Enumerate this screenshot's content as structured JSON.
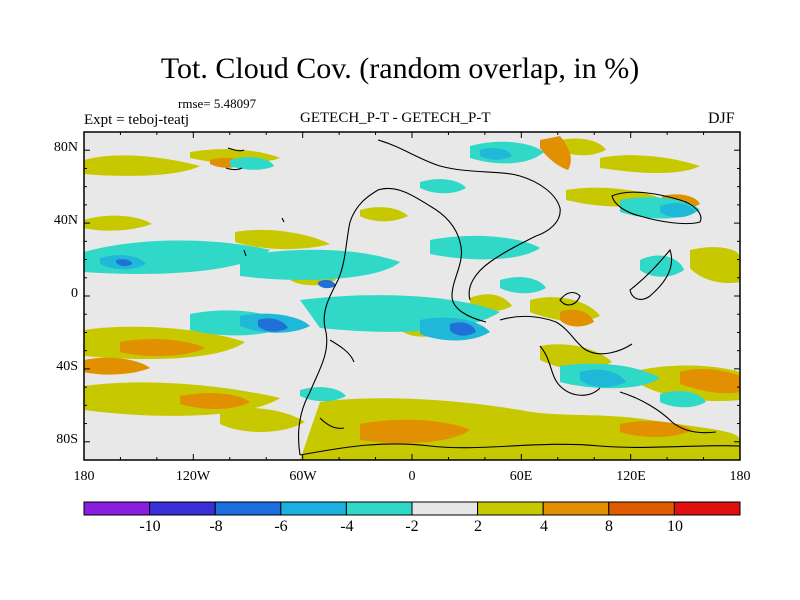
{
  "title": "Tot. Cloud Cov. (random overlap, in %)",
  "rmse_label": "rmse= 5.48097",
  "expt_label": "Expt = teboj-teatj",
  "subtitle": "GETECH_P-T - GETECH_P-T",
  "season": "DJF",
  "colors": {
    "background_field": "#e8e8e8",
    "positive_2_4": "#c8c800",
    "positive_4_8": "#e09000",
    "negative_2_4": "#30d8c8",
    "negative_4_6": "#20b8d8",
    "negative_6_8": "#2070d8",
    "coast": "#000000"
  },
  "map": {
    "lat_ticks": [
      "80N",
      "40N",
      "0",
      "40S",
      "80S"
    ],
    "lon_ticks": [
      "180",
      "120W",
      "60W",
      "0",
      "60E",
      "120E",
      "180"
    ]
  },
  "colorbar": {
    "labels": [
      "-10",
      "-8",
      "-6",
      "-4",
      "-2",
      "2",
      "4",
      "8",
      "10"
    ],
    "colors": [
      "#8a1ee0",
      "#3a2ed8",
      "#1a6ee0",
      "#1ab0e0",
      "#30d8c8",
      "#e6e6e6",
      "#c8c800",
      "#e09000",
      "#e05a00",
      "#e01010"
    ]
  }
}
